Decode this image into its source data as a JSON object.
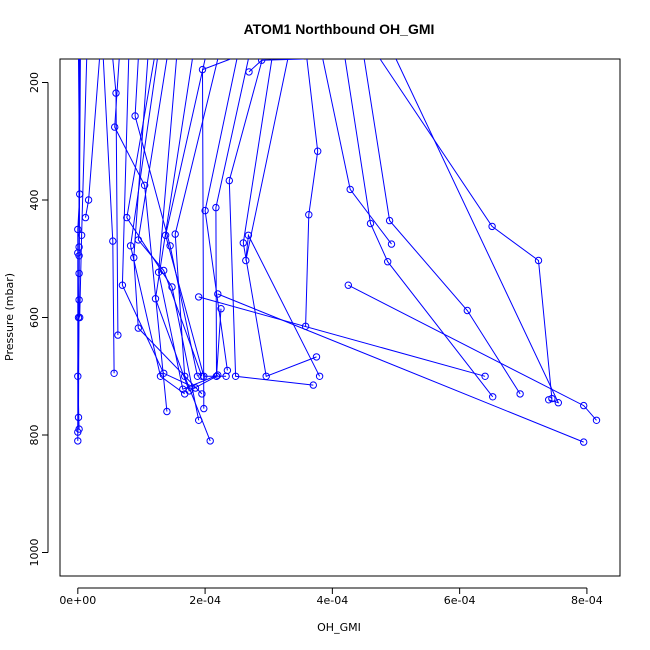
{
  "chart_data": {
    "type": "scatter",
    "title": "ATOM1 Northbound OH_GMI",
    "xlabel": "OH_GMI",
    "ylabel": "Pressure (mbar)",
    "xlim": [
      -2.8e-05,
      0.000852
    ],
    "ylim": [
      1040,
      160
    ],
    "y_reversed": true,
    "xticks": [
      0,
      0.0002,
      0.0004,
      0.0006,
      0.0008
    ],
    "xtick_labels": [
      "0e+00",
      "2e-04",
      "4e-04",
      "6e-04",
      "8e-04"
    ],
    "yticks": [
      200,
      400,
      600,
      800,
      1000
    ],
    "ytick_labels": [
      "200",
      "400",
      "600",
      "800",
      "1000"
    ],
    "grid": false,
    "legend": "none",
    "color": "#0000ff",
    "series": [
      {
        "x": [
          1e-06,
          3e-06,
          0.0,
          0.0,
          0.0
        ],
        "y": [
          160,
          390,
          450,
          490,
          810
        ]
      },
      {
        "x": [
          2e-06,
          2e-06,
          1e-06
        ],
        "y": [
          160,
          480,
          600
        ]
      },
      {
        "x": [
          3e-06,
          2e-06,
          0.0,
          2e-06
        ],
        "y": [
          160,
          525,
          700,
          790
        ]
      },
      {
        "x": [
          2e-06,
          2e-06,
          0.0
        ],
        "y": [
          160,
          570,
          795
        ]
      },
      {
        "x": [
          4e-06,
          2e-06,
          1e-06
        ],
        "y": [
          160,
          495,
          770
        ]
      },
      {
        "x": [
          1.4e-05,
          6e-06,
          3e-06
        ],
        "y": [
          160,
          460,
          600
        ]
      },
      {
        "x": [
          3.4e-05,
          1.7e-05,
          1.2e-05
        ],
        "y": [
          160,
          400,
          430
        ]
      },
      {
        "x": [
          4e-05,
          5.5e-05,
          5.7e-05
        ],
        "y": [
          160,
          470,
          695
        ]
      },
      {
        "x": [
          5.5e-05,
          6e-05,
          6.3e-05
        ],
        "y": [
          160,
          218,
          630
        ]
      },
      {
        "x": [
          6.5e-05,
          5.8e-05,
          0.000105,
          0.00014
        ],
        "y": [
          160,
          276,
          375,
          760
        ]
      },
      {
        "x": [
          8e-05,
          7e-05,
          0.000135,
          0.000185
        ],
        "y": [
          160,
          545,
          695,
          720
        ]
      },
      {
        "x": [
          9.5e-05,
          9e-05,
          0.000145,
          0.000188
        ],
        "y": [
          160,
          257,
          478,
          700
        ]
      },
      {
        "x": [
          0.00011,
          8.8e-05,
          9.5e-05,
          0.000195
        ],
        "y": [
          160,
          498,
          618,
          730
        ]
      },
      {
        "x": [
          0.00012,
          7.7e-05,
          0.000148,
          0.00019
        ],
        "y": [
          160,
          430,
          548,
          775
        ]
      },
      {
        "x": [
          0.000125,
          8.3e-05,
          0.00013,
          0.000168
        ],
        "y": [
          160,
          478,
          700,
          730
        ]
      },
      {
        "x": [
          0.00014,
          9.5e-05,
          0.000135,
          0.000195
        ],
        "y": [
          160,
          468,
          520,
          700
        ]
      },
      {
        "x": [
          0.000155,
          0.000127,
          0.000165,
          0.00022
        ],
        "y": [
          160,
          523,
          722,
          698
        ]
      },
      {
        "x": [
          0.00018,
          0.000122,
          0.000175,
          0.000218
        ],
        "y": [
          160,
          568,
          725,
          700
        ]
      },
      {
        "x": [
          0.0002,
          0.000138,
          0.000198,
          0.000233
        ],
        "y": [
          160,
          460,
          700,
          700
        ]
      },
      {
        "x": [
          0.00022,
          0.000153,
          0.000168,
          0.000208
        ],
        "y": [
          160,
          458,
          700,
          810
        ]
      },
      {
        "x": [
          0.00024,
          0.000196,
          0.000198
        ],
        "y": [
          160,
          178,
          755
        ]
      },
      {
        "x": [
          0.00025,
          0.0002,
          0.000235
        ],
        "y": [
          160,
          418,
          690
        ]
      },
      {
        "x": [
          0.000268,
          0.000217,
          0.000218,
          0.000225
        ],
        "y": [
          160,
          413,
          700,
          585
        ]
      },
      {
        "x": [
          0.00029,
          0.000238,
          0.000248,
          0.00037
        ],
        "y": [
          160,
          367,
          700,
          715
        ]
      },
      {
        "x": [
          0.000305,
          0.00026,
          0.000296,
          0.000375
        ],
        "y": [
          160,
          473,
          700,
          667
        ]
      },
      {
        "x": [
          0.00033,
          0.000264,
          0.000268,
          0.00038
        ],
        "y": [
          160,
          503,
          460,
          700
        ]
      },
      {
        "x": [
          0.000355,
          0.000289,
          0.000269
        ],
        "y": [
          160,
          162,
          182
        ]
      },
      {
        "x": [
          0.00036,
          0.000377,
          0.000363,
          0.000358
        ],
        "y": [
          160,
          317,
          425,
          615
        ]
      },
      {
        "x": [
          0.000385,
          0.000428,
          0.000493
        ],
        "y": [
          160,
          382,
          475
        ]
      },
      {
        "x": [
          0.00042,
          0.00046,
          0.000487,
          0.000652
        ],
        "y": [
          160,
          440,
          505,
          735
        ]
      },
      {
        "x": [
          0.00045,
          0.00049,
          0.000612,
          0.000695
        ],
        "y": [
          160,
          435,
          588,
          730
        ]
      },
      {
        "x": [
          0.000475,
          0.000651,
          0.000724,
          0.000745
        ],
        "y": [
          160,
          445,
          503,
          738
        ]
      },
      {
        "x": [
          0.0005,
          0.000755,
          0.00074
        ],
        "y": [
          160,
          745,
          740
        ]
      },
      {
        "x": [
          0.000425,
          0.000795,
          0.000815
        ],
        "y": [
          545,
          750,
          775
        ]
      },
      {
        "x": [
          0.00022,
          0.000795
        ],
        "y": [
          560,
          812
        ]
      },
      {
        "x": [
          0.00019,
          0.00064
        ],
        "y": [
          565,
          700
        ]
      }
    ]
  }
}
